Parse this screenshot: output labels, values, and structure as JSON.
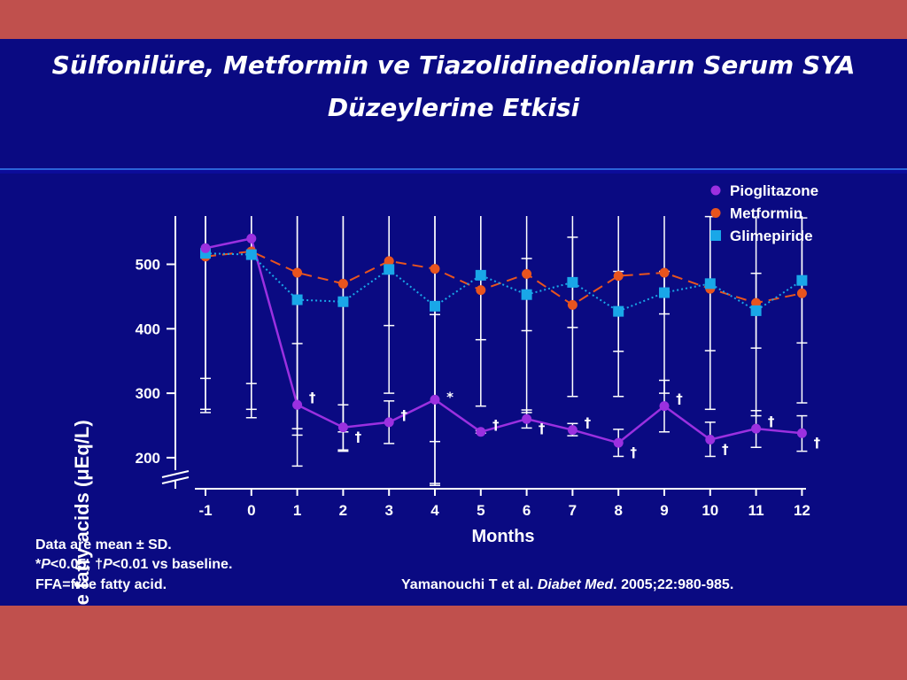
{
  "slide": {
    "title_line1": "Sülfonilüre, Metformin ve Tiazolidinedionların Serum SYA",
    "title_line2": "Düzeylerine Etkisi",
    "footnote1": "Data are mean ± SD.",
    "footnote2_a": "*",
    "footnote2_b": "P",
    "footnote2_c": "<0.05; †",
    "footnote2_d": "P",
    "footnote2_e": "<0.01 vs baseline.",
    "footnote3": "FFA=free fatty acid.",
    "citation_a": "Yamanouchi T et al. ",
    "citation_b": "Diabet Med",
    "citation_c": ". 2005;22:980-985.",
    "colors": {
      "background_band": "#c0504d",
      "slide": "#0a0a82",
      "pioglitazone": "#9b30e0",
      "metformin": "#e8541e",
      "glimepiride": "#19a7e8"
    }
  },
  "chart_data": {
    "type": "line",
    "xlabel": "Months",
    "ylabel": "Free fatty acids (μEq/L)",
    "x": [
      -1,
      0,
      1,
      2,
      3,
      4,
      5,
      6,
      7,
      8,
      9,
      10,
      11,
      12
    ],
    "xticks": [
      "-1",
      "0",
      "1",
      "2",
      "3",
      "4",
      "5",
      "6",
      "7",
      "8",
      "9",
      "10",
      "11",
      "12"
    ],
    "yticks": [
      200,
      300,
      400,
      500
    ],
    "ylim": [
      175,
      560
    ],
    "y_axis_break": true,
    "legend_position": "top-right",
    "series": [
      {
        "name": "Pioglitazone",
        "marker": "circle",
        "line": "solid",
        "color": "#9b30e0",
        "values": [
          525,
          540,
          282,
          247,
          255,
          290,
          240,
          260,
          243,
          223,
          280,
          228,
          245,
          238
        ],
        "sd_low": [
          270,
          275,
          187,
          212,
          222,
          157,
          238,
          246,
          234,
          202,
          240,
          202,
          216,
          210
        ],
        "sd_high": [
          575,
          580,
          377,
          282,
          288,
          422,
          242,
          274,
          253,
          244,
          320,
          255,
          273,
          265
        ]
      },
      {
        "name": "Metformin",
        "marker": "circle",
        "line": "dashed",
        "color": "#e8541e",
        "values": [
          512,
          520,
          487,
          470,
          505,
          493,
          460,
          485,
          437,
          482,
          487,
          462,
          440,
          455
        ],
        "sd_low": [
          275,
          315,
          245,
          210,
          300,
          225,
          280,
          270,
          295,
          295,
          300,
          275,
          265,
          285
        ],
        "sd_high": [
          749,
          725,
          729,
          730,
          710,
          761,
          640,
          700,
          579,
          669,
          674,
          649,
          615,
          625
        ]
      },
      {
        "name": "Glimepiride",
        "marker": "square",
        "line": "dotted",
        "color": "#19a7e8",
        "values": [
          517,
          515,
          445,
          442,
          492,
          435,
          483,
          453,
          472,
          427,
          456,
          470,
          428,
          475
        ],
        "sd_low": [
          323,
          262,
          235,
          240,
          405,
          160,
          383,
          397,
          402,
          365,
          423,
          366,
          370,
          378
        ],
        "sd_high": [
          711,
          768,
          655,
          644,
          579,
          710,
          583,
          509,
          542,
          489,
          489,
          574,
          486,
          572
        ]
      }
    ],
    "annotations": [
      {
        "x": 1,
        "text": "†"
      },
      {
        "x": 2,
        "text": "†"
      },
      {
        "x": 3,
        "text": "†"
      },
      {
        "x": 4,
        "text": "*"
      },
      {
        "x": 5,
        "text": "†"
      },
      {
        "x": 6,
        "text": "†"
      },
      {
        "x": 7,
        "text": "†"
      },
      {
        "x": 8,
        "text": "†"
      },
      {
        "x": 9,
        "text": "†"
      },
      {
        "x": 10,
        "text": "†"
      },
      {
        "x": 11,
        "text": "†"
      },
      {
        "x": 12,
        "text": "†"
      }
    ]
  }
}
